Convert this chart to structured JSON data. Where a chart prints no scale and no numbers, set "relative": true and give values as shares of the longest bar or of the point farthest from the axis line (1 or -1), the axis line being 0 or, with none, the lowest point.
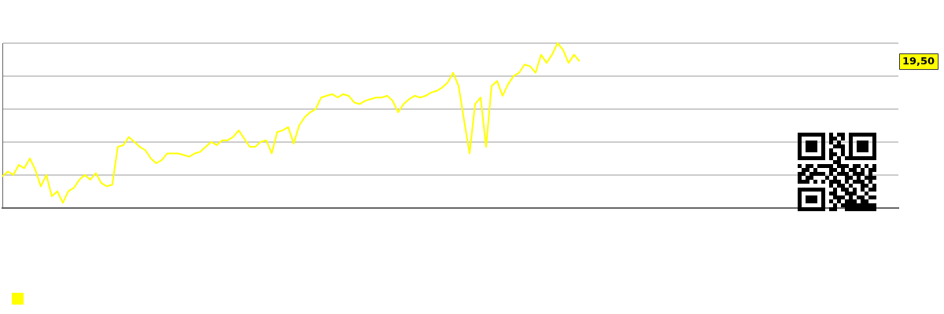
{
  "chart_data": {
    "type": "line",
    "relative": true,
    "grid": "y",
    "marker": "none",
    "line_style": "solid",
    "annotations": [
      "19,50"
    ],
    "categories": [
      null,
      null,
      null,
      null,
      null,
      null,
      null,
      null,
      null,
      null,
      null,
      null,
      null,
      null,
      null,
      null,
      null,
      null,
      null,
      null,
      null,
      null,
      null,
      null,
      null,
      null,
      null,
      null,
      null,
      null,
      null,
      null,
      null,
      null,
      null,
      null,
      null,
      null,
      null,
      null,
      null,
      null,
      null,
      null,
      null,
      null,
      null,
      null,
      null,
      null,
      null,
      null,
      null,
      null,
      null,
      null,
      null,
      null,
      null,
      null,
      null,
      null,
      null,
      null,
      null,
      null,
      null,
      null,
      null,
      null,
      null,
      null,
      null,
      null,
      null,
      null,
      null,
      null,
      null,
      null,
      null,
      null,
      null,
      null,
      null,
      null,
      null,
      null,
      null,
      null,
      null,
      null,
      null,
      null,
      null,
      null,
      null,
      null,
      null,
      null,
      null,
      null,
      null,
      null,
      null,
      null,
      null,
      null,
      null,
      null,
      null,
      null,
      null,
      null,
      null,
      null,
      null,
      null,
      null,
      null,
      null,
      null,
      null,
      null,
      null,
      null,
      null,
      null,
      null,
      null,
      null,
      null,
      null,
      null,
      null,
      null,
      null,
      null,
      null,
      null,
      null,
      null,
      null,
      null,
      null,
      null,
      null,
      null,
      null,
      null,
      null,
      null,
      null,
      null,
      null,
      null,
      null,
      null,
      null,
      null,
      null,
      null,
      null,
      null
    ],
    "series": [
      {
        "color": "#ffff00",
        "values": [
          0.19,
          0.22,
          0.2,
          0.26,
          0.24,
          0.3,
          0.23,
          0.13,
          0.2,
          0.07,
          0.1,
          0.03,
          0.1,
          0.12,
          0.17,
          0.2,
          0.17,
          0.21,
          0.15,
          0.13,
          0.14,
          0.37,
          0.38,
          0.43,
          0.4,
          0.37,
          0.35,
          0.3,
          0.27,
          0.29,
          0.33,
          0.33,
          0.33,
          0.32,
          0.31,
          0.33,
          0.34,
          0.37,
          0.4,
          0.38,
          0.41,
          0.41,
          0.43,
          0.47,
          0.42,
          0.37,
          0.37,
          0.4,
          0.41,
          0.33,
          0.46,
          0.47,
          0.49,
          0.39,
          0.5,
          0.55,
          0.58,
          0.6,
          0.67,
          0.68,
          0.69,
          0.67,
          0.69,
          0.68,
          0.64,
          0.63,
          0.65,
          0.66,
          0.67,
          0.67,
          0.68,
          0.65,
          0.58,
          0.63,
          0.66,
          0.68,
          0.67,
          0.68,
          0.7,
          0.71,
          0.73,
          0.76,
          0.82,
          0.74,
          0.53,
          0.33,
          0.63,
          0.67,
          0.37,
          0.74,
          0.77,
          0.68,
          0.75,
          0.8,
          0.82,
          0.87,
          0.86,
          0.82,
          0.93,
          0.88,
          0.93,
          1,
          0.96,
          0.88,
          0.93,
          0.89,
          null,
          null,
          null,
          null,
          null,
          null,
          null,
          null,
          null,
          null,
          null,
          null,
          null,
          null,
          null,
          null,
          null,
          null,
          null,
          null,
          null,
          null,
          null,
          null,
          null,
          null,
          null,
          null,
          null,
          null,
          null,
          null,
          null,
          null,
          null,
          null,
          null,
          null,
          null,
          null,
          null,
          null,
          null,
          null,
          null,
          null,
          null,
          null,
          null,
          null,
          null,
          null,
          null,
          null,
          null,
          null,
          null,
          null
        ]
      }
    ]
  }
}
